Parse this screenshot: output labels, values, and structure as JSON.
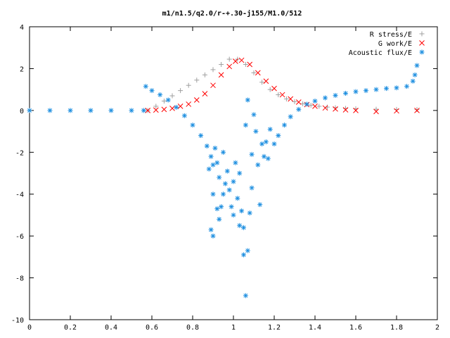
{
  "chart_data": {
    "type": "scatter",
    "title": "m1/n1.5/q2.0/r-+.30-j155/M1.0/512",
    "xlabel": "",
    "ylabel": "",
    "xlim": [
      0,
      2
    ],
    "ylim": [
      -10,
      4
    ],
    "x_ticks": [
      "0",
      "0.2",
      "0.4",
      "0.6",
      "0.8",
      "1",
      "1.2",
      "1.4",
      "1.6",
      "1.8",
      "2"
    ],
    "y_ticks": [
      "4",
      "2",
      "0",
      "-2",
      "-4",
      "-6",
      "-8",
      "-10"
    ],
    "grid": false,
    "legend_position": "top-right",
    "series": [
      {
        "name": "R stress/E",
        "marker": "plus",
        "color": "#a0a0a0",
        "points": [
          [
            0.58,
            0.0
          ],
          [
            0.62,
            0.2
          ],
          [
            0.66,
            0.45
          ],
          [
            0.7,
            0.7
          ],
          [
            0.74,
            0.95
          ],
          [
            0.78,
            1.2
          ],
          [
            0.82,
            1.45
          ],
          [
            0.86,
            1.7
          ],
          [
            0.9,
            1.95
          ],
          [
            0.94,
            2.2
          ],
          [
            0.98,
            2.45
          ],
          [
            1.02,
            2.45
          ],
          [
            1.06,
            2.2
          ],
          [
            1.1,
            1.8
          ],
          [
            1.14,
            1.35
          ],
          [
            1.18,
            1.0
          ],
          [
            1.22,
            0.75
          ],
          [
            1.26,
            0.55
          ],
          [
            1.3,
            0.42
          ],
          [
            1.34,
            0.32
          ],
          [
            1.38,
            0.25
          ],
          [
            1.42,
            0.2
          ],
          [
            1.46,
            0.16
          ],
          [
            1.5,
            0.13
          ],
          [
            1.55,
            0.1
          ],
          [
            1.6,
            0.08
          ],
          [
            1.7,
            0.06
          ],
          [
            1.8,
            0.05
          ],
          [
            1.9,
            0.04
          ]
        ]
      },
      {
        "name": "G work/E",
        "marker": "x",
        "color": "#ff0000",
        "points": [
          [
            0.58,
            0.0
          ],
          [
            0.62,
            0.02
          ],
          [
            0.66,
            0.05
          ],
          [
            0.7,
            0.1
          ],
          [
            0.74,
            0.2
          ],
          [
            0.78,
            0.3
          ],
          [
            0.82,
            0.5
          ],
          [
            0.86,
            0.8
          ],
          [
            0.9,
            1.2
          ],
          [
            0.94,
            1.7
          ],
          [
            0.98,
            2.1
          ],
          [
            1.01,
            2.35
          ],
          [
            1.04,
            2.4
          ],
          [
            1.08,
            2.2
          ],
          [
            1.12,
            1.8
          ],
          [
            1.16,
            1.4
          ],
          [
            1.2,
            1.05
          ],
          [
            1.24,
            0.75
          ],
          [
            1.28,
            0.55
          ],
          [
            1.32,
            0.4
          ],
          [
            1.36,
            0.28
          ],
          [
            1.4,
            0.2
          ],
          [
            1.45,
            0.12
          ],
          [
            1.5,
            0.07
          ],
          [
            1.55,
            0.03
          ],
          [
            1.6,
            0.0
          ],
          [
            1.7,
            -0.05
          ],
          [
            1.8,
            -0.02
          ],
          [
            1.9,
            0.0
          ]
        ]
      },
      {
        "name": "Acoustic flux/E",
        "marker": "star",
        "color": "#1e8fe0",
        "points": [
          [
            0.0,
            0.0
          ],
          [
            0.1,
            0.0
          ],
          [
            0.2,
            0.0
          ],
          [
            0.3,
            0.0
          ],
          [
            0.4,
            0.0
          ],
          [
            0.5,
            0.0
          ],
          [
            0.56,
            0.0
          ],
          [
            0.57,
            1.15
          ],
          [
            0.6,
            0.95
          ],
          [
            0.64,
            0.75
          ],
          [
            0.68,
            0.5
          ],
          [
            0.72,
            0.15
          ],
          [
            0.76,
            -0.25
          ],
          [
            0.8,
            -0.7
          ],
          [
            0.84,
            -1.2
          ],
          [
            0.87,
            -1.7
          ],
          [
            0.89,
            -2.2
          ],
          [
            0.9,
            -2.6
          ],
          [
            0.91,
            -1.8
          ],
          [
            0.92,
            -2.5
          ],
          [
            0.93,
            -3.2
          ],
          [
            0.88,
            -2.8
          ],
          [
            0.9,
            -4.0
          ],
          [
            0.92,
            -4.7
          ],
          [
            0.89,
            -5.7
          ],
          [
            0.9,
            -6.0
          ],
          [
            0.93,
            -5.2
          ],
          [
            0.94,
            -4.6
          ],
          [
            0.95,
            -4.0
          ],
          [
            0.96,
            -3.5
          ],
          [
            0.97,
            -2.9
          ],
          [
            0.95,
            -2.0
          ],
          [
            0.98,
            -3.8
          ],
          [
            0.99,
            -4.6
          ],
          [
            1.0,
            -5.0
          ],
          [
            1.0,
            -3.4
          ],
          [
            1.01,
            -2.5
          ],
          [
            1.02,
            -4.2
          ],
          [
            1.03,
            -5.5
          ],
          [
            1.03,
            -3.0
          ],
          [
            1.04,
            -4.8
          ],
          [
            1.05,
            -5.6
          ],
          [
            1.05,
            -6.9
          ],
          [
            1.06,
            -8.85
          ],
          [
            1.06,
            -0.7
          ],
          [
            1.07,
            0.5
          ],
          [
            1.07,
            -6.7
          ],
          [
            1.08,
            -4.9
          ],
          [
            1.09,
            -3.7
          ],
          [
            1.09,
            -2.1
          ],
          [
            1.1,
            -0.2
          ],
          [
            1.11,
            -1.0
          ],
          [
            1.12,
            -2.6
          ],
          [
            1.13,
            -4.5
          ],
          [
            1.14,
            -1.6
          ],
          [
            1.15,
            -2.2
          ],
          [
            1.16,
            -1.5
          ],
          [
            1.17,
            -2.3
          ],
          [
            1.18,
            -0.9
          ],
          [
            1.2,
            -1.6
          ],
          [
            1.22,
            -1.2
          ],
          [
            1.25,
            -0.7
          ],
          [
            1.28,
            -0.3
          ],
          [
            1.32,
            0.05
          ],
          [
            1.36,
            0.3
          ],
          [
            1.4,
            0.45
          ],
          [
            1.45,
            0.6
          ],
          [
            1.5,
            0.72
          ],
          [
            1.55,
            0.82
          ],
          [
            1.6,
            0.9
          ],
          [
            1.65,
            0.95
          ],
          [
            1.7,
            1.0
          ],
          [
            1.75,
            1.05
          ],
          [
            1.8,
            1.08
          ],
          [
            1.85,
            1.15
          ],
          [
            1.88,
            1.4
          ],
          [
            1.89,
            1.7
          ],
          [
            1.9,
            2.15
          ]
        ]
      }
    ]
  }
}
